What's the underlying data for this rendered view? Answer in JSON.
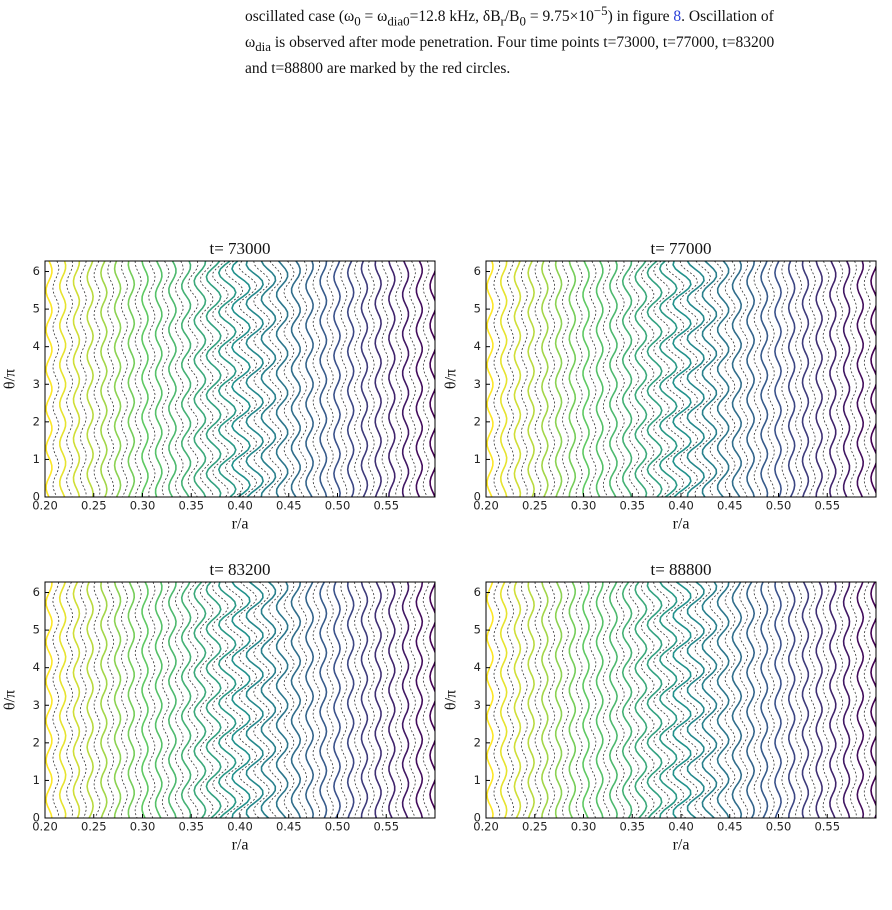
{
  "text": {
    "line1": [
      "oscillated case (ω",
      "0",
      " = ω",
      "dia0",
      "=12.8 kHz, δB",
      "r",
      "/B",
      "0",
      " = 9.75×10",
      "−5",
      ") in figure ",
      "8",
      ". Oscillation of"
    ],
    "line2": [
      "ω",
      "dia",
      " is observed after mode penetration. Four time points t=73000, t=77000, t=83200"
    ],
    "line3": "and t=88800 are marked by the red circles."
  },
  "chart_data": [
    {
      "type": "contour",
      "title": "t= 73000",
      "xlabel": "r/a",
      "ylabel": "θ/π",
      "xlim": [
        0.2,
        0.6
      ],
      "ylim": [
        0,
        6.28
      ],
      "xticks": [
        {
          "value": 0.2,
          "label": "0.20"
        },
        0.25,
        {
          "value": 0.3,
          "label": "0.30"
        },
        0.35,
        {
          "value": 0.4,
          "label": "0.40"
        },
        0.45,
        {
          "value": 0.5,
          "label": "0.50"
        },
        0.55
      ],
      "yticks": [
        0,
        1,
        2,
        3,
        4,
        5,
        6
      ]
    },
    {
      "type": "contour",
      "title": "t= 77000",
      "xlabel": "r/a",
      "ylabel": "θ/π",
      "xlim": [
        0.2,
        0.6
      ],
      "ylim": [
        0,
        6.28
      ],
      "xticks": [
        {
          "value": 0.2,
          "label": "0.20"
        },
        0.25,
        {
          "value": 0.3,
          "label": "0.30"
        },
        0.35,
        {
          "value": 0.4,
          "label": "0.40"
        },
        0.45,
        {
          "value": 0.5,
          "label": "0.50"
        },
        0.55
      ],
      "yticks": [
        0,
        1,
        2,
        3,
        4,
        5,
        6
      ]
    },
    {
      "type": "contour",
      "title": "t= 83200",
      "xlabel": "r/a",
      "ylabel": "θ/π",
      "xlim": [
        0.2,
        0.6
      ],
      "ylim": [
        0,
        6.28
      ],
      "xticks": [
        {
          "value": 0.2,
          "label": "0.20"
        },
        0.25,
        {
          "value": 0.3,
          "label": "0.30"
        },
        0.35,
        {
          "value": 0.4,
          "label": "0.40"
        },
        0.45,
        {
          "value": 0.5,
          "label": "0.50"
        },
        0.55
      ],
      "yticks": [
        0,
        1,
        2,
        3,
        4,
        5,
        6
      ]
    },
    {
      "type": "contour",
      "title": "t= 88800",
      "xlabel": "r/a",
      "ylabel": "θ/π",
      "xlim": [
        0.2,
        0.6
      ],
      "ylim": [
        0,
        6.28
      ],
      "xticks": [
        {
          "value": 0.2,
          "label": "0.20"
        },
        0.25,
        {
          "value": 0.3,
          "label": "0.30"
        },
        0.35,
        {
          "value": 0.4,
          "label": "0.40"
        },
        0.45,
        {
          "value": 0.5,
          "label": "0.50"
        },
        0.55
      ],
      "yticks": [
        0,
        1,
        2,
        3,
        4,
        5,
        6
      ]
    }
  ]
}
